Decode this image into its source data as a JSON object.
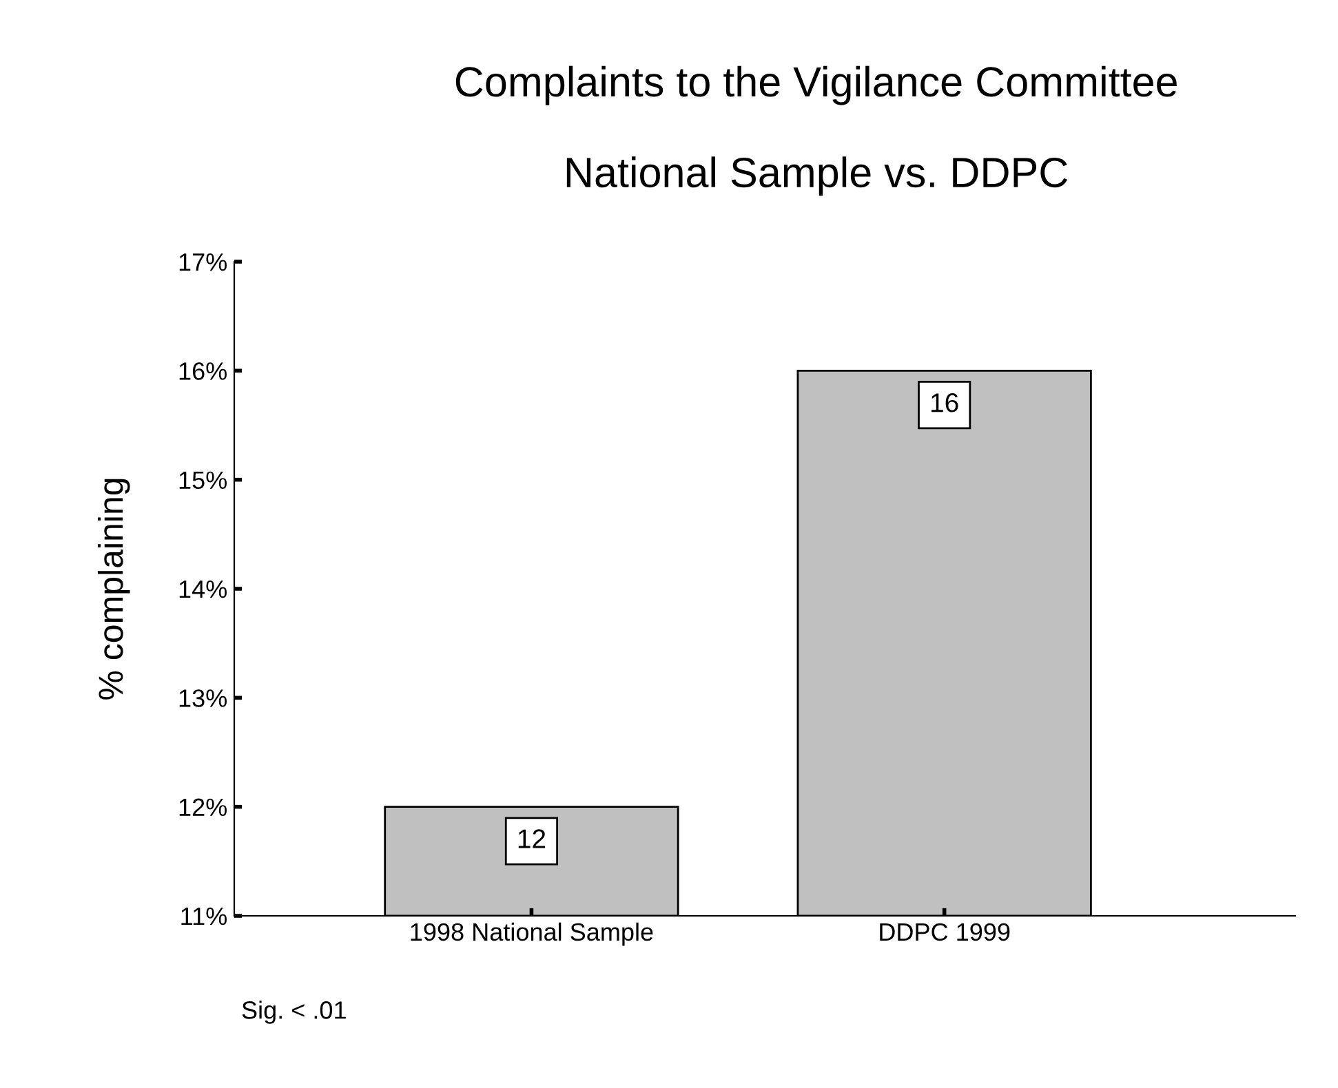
{
  "chart_data": {
    "type": "bar",
    "title": "Complaints to the Vigilance Committee\n\nNational Sample vs. DDPC",
    "ylabel": "% complaining",
    "categories": [
      "1998 National Sample",
      "DDPC 1999"
    ],
    "values": [
      12,
      16
    ],
    "color": "#c0c0c0",
    "ylim": [
      11,
      17
    ],
    "yticks": [
      {
        "value": 11,
        "label": "11%"
      },
      {
        "value": 12,
        "label": "12%"
      },
      {
        "value": 13,
        "label": "13%"
      },
      {
        "value": 14,
        "label": "14%"
      },
      {
        "value": 15,
        "label": "15%"
      },
      {
        "value": 16,
        "label": "16%"
      },
      {
        "value": 17,
        "label": "17%"
      }
    ],
    "data_labels": true,
    "grid": false,
    "legend": false,
    "annotations": [
      "Sig. < .01"
    ]
  }
}
